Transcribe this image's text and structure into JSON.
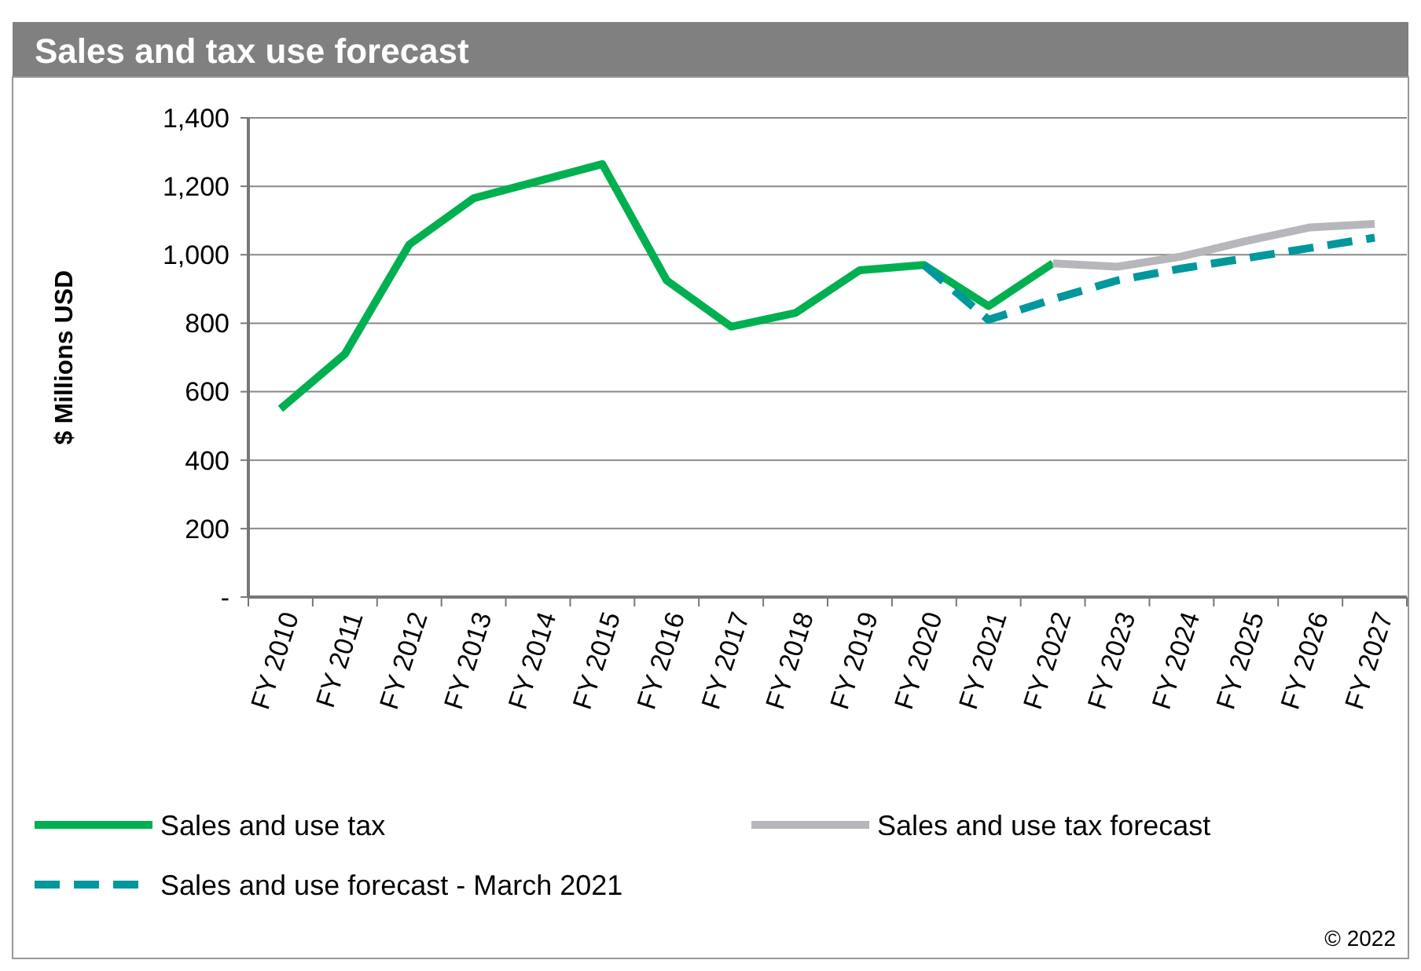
{
  "chart_data": {
    "type": "line",
    "title": "Sales and tax use forecast",
    "ylabel": "$ Millions  USD",
    "categories": [
      "FY 2010",
      "FY 2011",
      "FY 2012",
      "FY 2013",
      "FY 2014",
      "FY 2015",
      "FY 2016",
      "FY 2017",
      "FY 2018",
      "FY 2019",
      "FY 2020",
      "FY 2021",
      "FY 2022",
      "FY 2023",
      "FY 2024",
      "FY 2025",
      "FY 2026",
      "FY 2027"
    ],
    "series": [
      {
        "name": "Sales and use tax",
        "color": "#00b050",
        "line_style": "solid",
        "values": [
          550,
          710,
          1030,
          1165,
          1215,
          1265,
          925,
          790,
          830,
          955,
          970,
          850,
          975,
          null,
          null,
          null,
          null,
          null
        ]
      },
      {
        "name": "Sales and use tax forecast",
        "color": "#b7b7bb",
        "line_style": "solid",
        "values": [
          null,
          null,
          null,
          null,
          null,
          null,
          null,
          null,
          null,
          null,
          null,
          null,
          975,
          965,
          995,
          1040,
          1080,
          1090
        ]
      },
      {
        "name": "Sales and use forecast - March 2021",
        "color": "#00979d",
        "line_style": "dashed",
        "values": [
          null,
          null,
          null,
          null,
          null,
          null,
          null,
          null,
          null,
          null,
          970,
          810,
          870,
          925,
          960,
          990,
          1020,
          1050
        ]
      }
    ],
    "ylim": [
      0,
      1400
    ],
    "yticks": [
      {
        "value": 0,
        "label": "-"
      },
      {
        "value": 200,
        "label": "200"
      },
      {
        "value": 400,
        "label": "400"
      },
      {
        "value": 600,
        "label": "600"
      },
      {
        "value": 800,
        "label": "800"
      },
      {
        "value": 1000,
        "label": "1,000"
      },
      {
        "value": 1200,
        "label": "1,200"
      },
      {
        "value": 1400,
        "label": "1,400"
      }
    ],
    "grid": "y",
    "legend": "bottom",
    "marker": "none",
    "annotations": [
      "© 2022"
    ]
  }
}
